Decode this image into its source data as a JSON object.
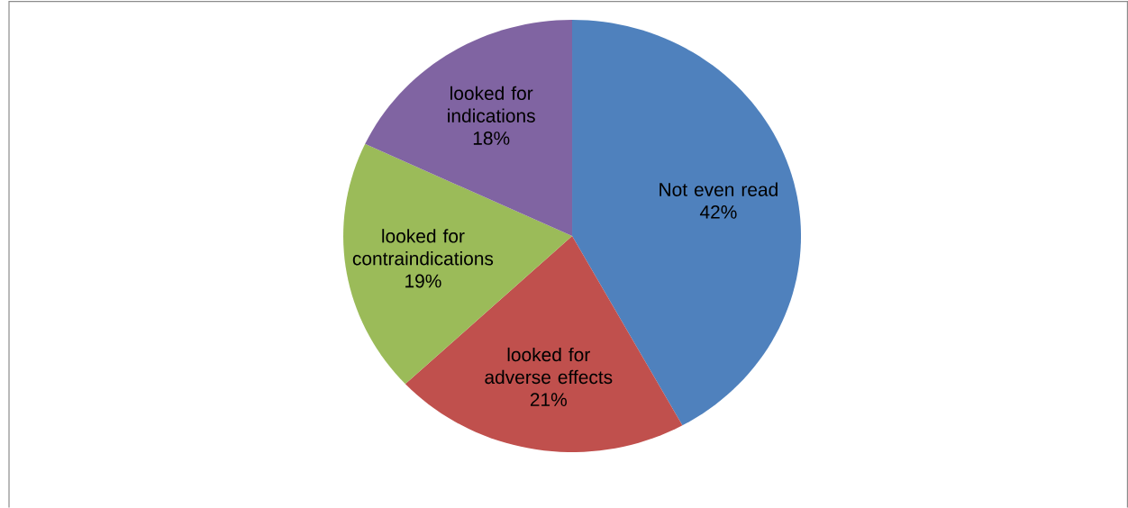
{
  "chart_data": {
    "type": "pie",
    "categories": [
      "Not even read",
      "looked for adverse effects",
      "looked for contraindications",
      "looked for indications"
    ],
    "values": [
      42,
      21,
      19,
      18
    ],
    "value_labels": [
      "42%",
      "21%",
      "19%",
      "18%"
    ],
    "colors": [
      "#4f81bd",
      "#c0504d",
      "#9bbb59",
      "#8064a2"
    ]
  }
}
